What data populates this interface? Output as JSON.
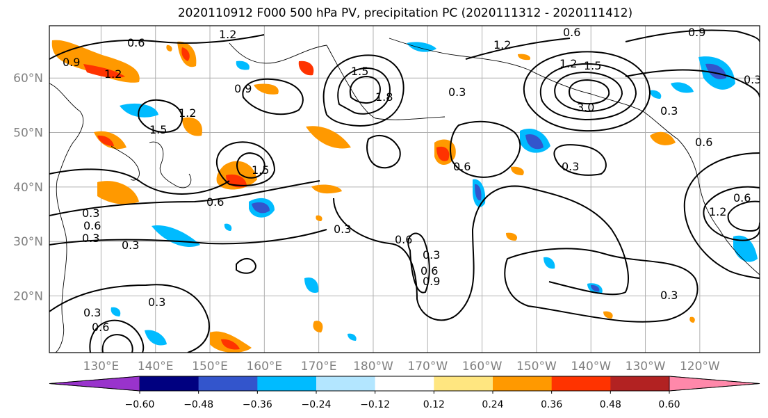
{
  "title": "2020110912 F000 500 hPa PV, precipitation PC (2020111312 - 2020111412)",
  "map": {
    "lon_ticks": [
      "130°E",
      "140°E",
      "150°E",
      "160°E",
      "170°E",
      "180°W",
      "170°W",
      "160°W",
      "150°W",
      "140°W",
      "130°W",
      "120°W"
    ],
    "lat_ticks": [
      "60°N",
      "50°N",
      "40°N",
      "30°N",
      "20°N"
    ],
    "contour_labels": [
      "0.6",
      "0.9",
      "1.2",
      "1.2",
      "1.5",
      "0.9",
      "1.5",
      "1.2",
      "1.2",
      "1.8",
      "0.3",
      "0.6",
      "1.2",
      "1.5",
      "0.6",
      "3.0",
      "0.3",
      "0.3",
      "0.3",
      "0.6",
      "0.3",
      "0.6",
      "0.3",
      "0.6",
      "0.3",
      "0.3",
      "0.6",
      "0.9",
      "0.6",
      "0.3",
      "1.2",
      "0.6",
      "0.9",
      "0.6",
      "0.3",
      "1.5",
      "0.3",
      "0.3"
    ]
  },
  "colorbar": {
    "colors": [
      "#9933cc",
      "#000080",
      "#3355cc",
      "#00bbff",
      "#b3e6ff",
      "#ffffff",
      "#ffe680",
      "#ff9900",
      "#ff3300",
      "#b22222",
      "#ff88aa"
    ],
    "tick_labels": [
      "−0.60",
      "−0.48",
      "−0.36",
      "−0.24",
      "−0.12",
      "0.12",
      "0.24",
      "0.36",
      "0.48",
      "0.60"
    ]
  }
}
